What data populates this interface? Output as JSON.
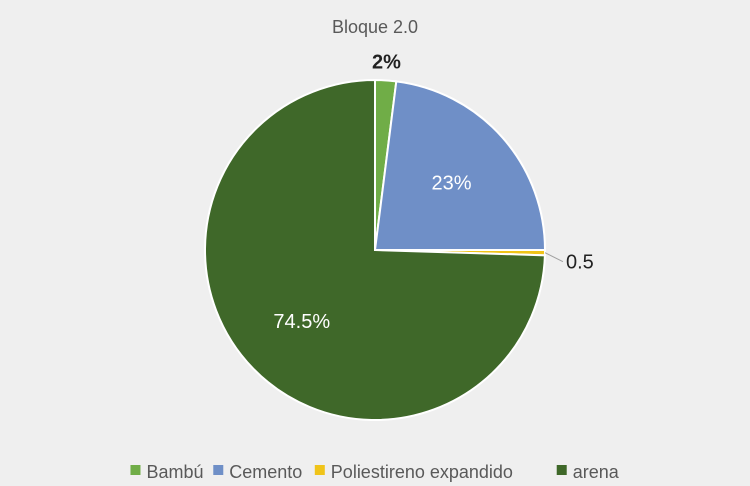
{
  "chart_data": {
    "type": "pie",
    "title": "Bloque 2.0",
    "slices": [
      {
        "name": "Bambú",
        "value": 2,
        "label": "2%",
        "color": "#70ad47"
      },
      {
        "name": "Cemento",
        "value": 23,
        "label": "23%",
        "color": "#6f8fc7"
      },
      {
        "name": "Poliestireno expandido",
        "value": 0.5,
        "label": "0.5",
        "color": "#f0c419"
      },
      {
        "name": "arena",
        "value": 74.5,
        "label": "74.5%",
        "color": "#3f6829"
      }
    ],
    "legend": {
      "position": "bottom",
      "items": [
        "Bambú",
        "Cemento",
        "Poliestireno expandido",
        "arena"
      ]
    }
  }
}
